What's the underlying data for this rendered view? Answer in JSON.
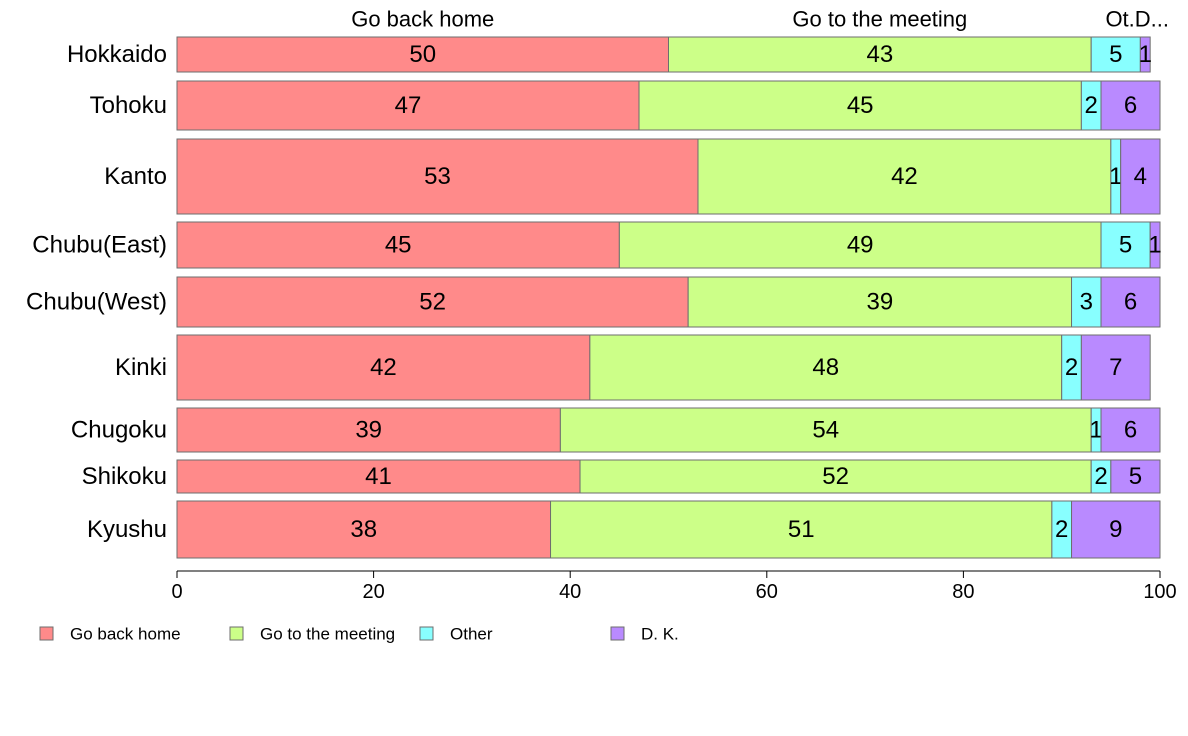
{
  "chart_data": {
    "type": "bar",
    "orientation": "horizontal",
    "stacked": true,
    "categories": [
      "Hokkaido",
      "Tohoku",
      "Kanto",
      "Chubu(East)",
      "Chubu(West)",
      "Kinki",
      "Chugoku",
      "Shikoku",
      "Kyushu"
    ],
    "series": [
      {
        "name": "Go back home",
        "color": "#ff8a8a",
        "values": [
          50,
          47,
          53,
          45,
          52,
          42,
          39,
          41,
          38
        ]
      },
      {
        "name": "Go to the meeting",
        "color": "#ccff88",
        "values": [
          43,
          45,
          42,
          49,
          39,
          48,
          54,
          52,
          51
        ]
      },
      {
        "name": "Other",
        "color": "#88ffff",
        "values": [
          5,
          2,
          1,
          5,
          3,
          2,
          1,
          2,
          2
        ]
      },
      {
        "name": "D. K.",
        "color": "#b98aff",
        "values": [
          1,
          6,
          4,
          1,
          6,
          7,
          6,
          5,
          9
        ]
      }
    ],
    "top_labels": [
      "Go back home",
      "Go to the meeting",
      "Ot.D..."
    ],
    "xlim": [
      0,
      100
    ],
    "xticks": [
      0,
      20,
      40,
      60,
      80,
      100
    ],
    "grid": false,
    "legend_position": "bottom-left"
  }
}
